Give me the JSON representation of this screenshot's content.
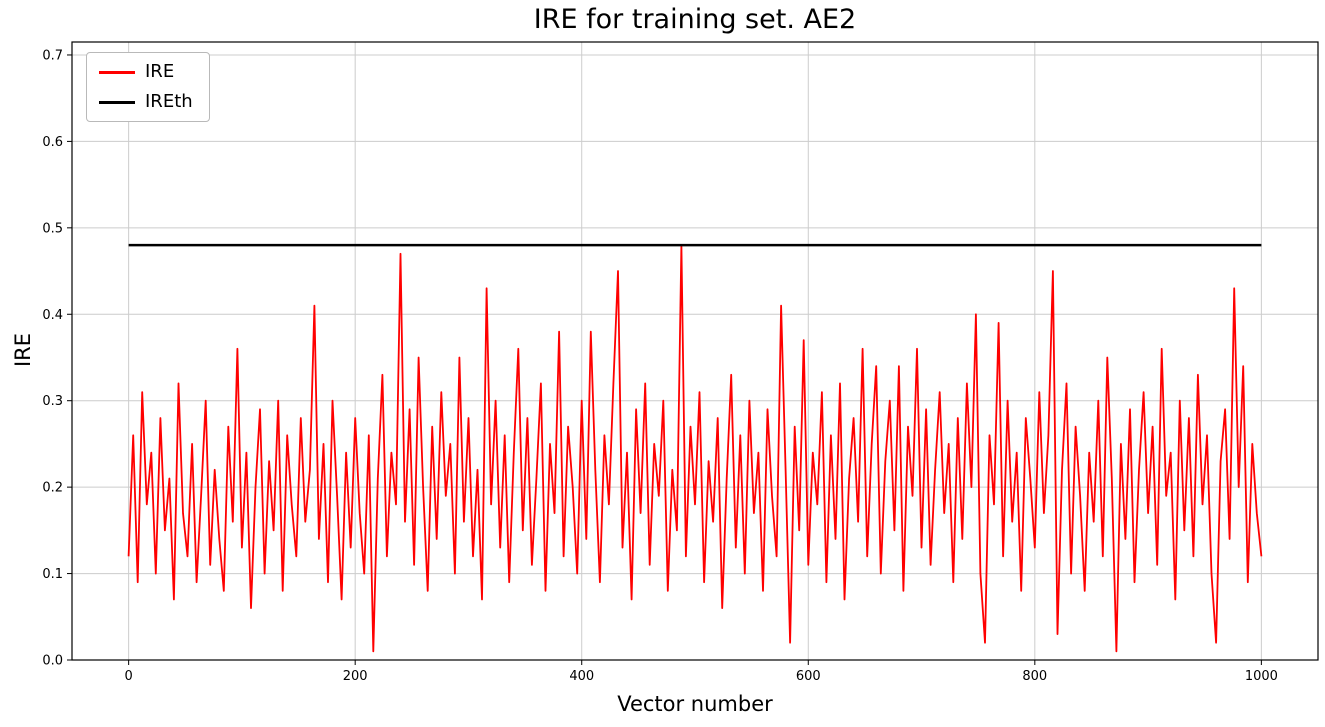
{
  "figure": {
    "background": "#ffffff"
  },
  "chart_data": {
    "type": "line",
    "title": "IRE for training set. AE2",
    "xlabel": "Vector number",
    "ylabel": "IRE",
    "xlim": [
      -50,
      1050
    ],
    "ylim": [
      0,
      0.715
    ],
    "x_ticks": [
      0,
      200,
      400,
      600,
      800,
      1000
    ],
    "y_ticks": [
      0.0,
      0.1,
      0.2,
      0.3,
      0.4,
      0.5,
      0.6,
      0.7
    ],
    "grid": true,
    "grid_color": "#cccccc",
    "spine_color": "#000000",
    "legend_position": "upper left",
    "series": [
      {
        "name": "IRE",
        "type": "line",
        "color": "#ff0000",
        "linewidth": 1.8,
        "x_start": 0,
        "x_step": 4,
        "note": "downsampled approximation of the ~1000-point noisy signal; range ~0.01-0.48, mean ~0.19",
        "values": [
          0.12,
          0.26,
          0.09,
          0.31,
          0.18,
          0.24,
          0.1,
          0.28,
          0.15,
          0.21,
          0.07,
          0.32,
          0.17,
          0.12,
          0.25,
          0.09,
          0.19,
          0.3,
          0.11,
          0.22,
          0.14,
          0.08,
          0.27,
          0.16,
          0.36,
          0.13,
          0.24,
          0.06,
          0.2,
          0.29,
          0.1,
          0.23,
          0.15,
          0.3,
          0.08,
          0.26,
          0.18,
          0.12,
          0.28,
          0.16,
          0.22,
          0.41,
          0.14,
          0.25,
          0.09,
          0.3,
          0.19,
          0.07,
          0.24,
          0.13,
          0.28,
          0.17,
          0.1,
          0.26,
          0.01,
          0.21,
          0.33,
          0.12,
          0.24,
          0.18,
          0.47,
          0.16,
          0.29,
          0.11,
          0.35,
          0.2,
          0.08,
          0.27,
          0.14,
          0.31,
          0.19,
          0.25,
          0.1,
          0.35,
          0.16,
          0.28,
          0.12,
          0.22,
          0.07,
          0.43,
          0.18,
          0.3,
          0.13,
          0.26,
          0.09,
          0.24,
          0.36,
          0.15,
          0.28,
          0.11,
          0.21,
          0.32,
          0.08,
          0.25,
          0.17,
          0.38,
          0.12,
          0.27,
          0.2,
          0.1,
          0.3,
          0.14,
          0.38,
          0.22,
          0.09,
          0.26,
          0.18,
          0.32,
          0.45,
          0.13,
          0.24,
          0.07,
          0.29,
          0.17,
          0.32,
          0.11,
          0.25,
          0.19,
          0.3,
          0.08,
          0.22,
          0.15,
          0.48,
          0.12,
          0.27,
          0.18,
          0.31,
          0.09,
          0.23,
          0.16,
          0.28,
          0.06,
          0.21,
          0.33,
          0.13,
          0.26,
          0.1,
          0.3,
          0.17,
          0.24,
          0.08,
          0.29,
          0.19,
          0.12,
          0.41,
          0.22,
          0.02,
          0.27,
          0.15,
          0.37,
          0.11,
          0.24,
          0.18,
          0.31,
          0.09,
          0.26,
          0.14,
          0.32,
          0.07,
          0.21,
          0.28,
          0.16,
          0.36,
          0.12,
          0.25,
          0.34,
          0.1,
          0.23,
          0.3,
          0.15,
          0.34,
          0.08,
          0.27,
          0.19,
          0.36,
          0.13,
          0.29,
          0.11,
          0.22,
          0.31,
          0.17,
          0.25,
          0.09,
          0.28,
          0.14,
          0.32,
          0.2,
          0.4,
          0.1,
          0.02,
          0.26,
          0.18,
          0.39,
          0.12,
          0.3,
          0.16,
          0.24,
          0.08,
          0.28,
          0.21,
          0.13,
          0.31,
          0.17,
          0.26,
          0.45,
          0.03,
          0.22,
          0.32,
          0.1,
          0.27,
          0.19,
          0.08,
          0.24,
          0.16,
          0.3,
          0.12,
          0.35,
          0.21,
          0.01,
          0.25,
          0.14,
          0.29,
          0.09,
          0.22,
          0.31,
          0.17,
          0.27,
          0.11,
          0.36,
          0.19,
          0.24,
          0.07,
          0.3,
          0.15,
          0.28,
          0.12,
          0.33,
          0.18,
          0.26,
          0.1,
          0.02,
          0.23,
          0.29,
          0.14,
          0.43,
          0.2,
          0.34,
          0.09,
          0.25,
          0.17,
          0.12
        ]
      },
      {
        "name": "IREth",
        "type": "hline",
        "color": "#000000",
        "linewidth": 2.5,
        "y": 0.48,
        "x_range": [
          0,
          1000
        ]
      }
    ]
  }
}
